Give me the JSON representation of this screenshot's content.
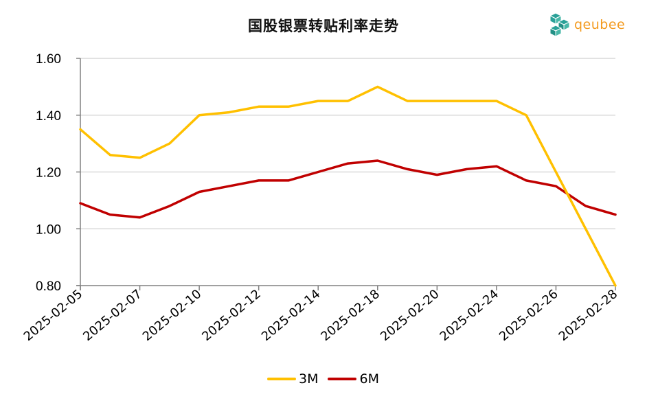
{
  "header": {
    "title": "国股银票转贴利率走势",
    "logo_text": "qeubee"
  },
  "colors": {
    "series_3m": "#FFC000",
    "series_6m": "#C00000",
    "grid": "#d9d9d9",
    "axis": "#808080",
    "logo_text": "#f39a1e",
    "logo_icon": "#2aa198"
  },
  "legend": {
    "items": [
      {
        "label": "3M",
        "color": "#FFC000"
      },
      {
        "label": "6M",
        "color": "#C00000"
      }
    ]
  },
  "chart_data": {
    "type": "line",
    "title": "国股银票转贴利率走势",
    "xlabel": "",
    "ylabel": "",
    "ylim": [
      0.8,
      1.6
    ],
    "yticks": [
      "1.60",
      "1.40",
      "1.20",
      "1.00",
      "0.80"
    ],
    "grid": true,
    "legend_position": "bottom",
    "x_tick_labels": [
      "2025-02-05",
      "2025-02-07",
      "2025-02-10",
      "2025-02-12",
      "2025-02-14",
      "2025-02-18",
      "2025-02-20",
      "2025-02-24",
      "2025-02-26",
      "2025-02-28"
    ],
    "x_point_count": 19,
    "series": [
      {
        "name": "3M",
        "color": "#FFC000",
        "values": [
          1.35,
          1.26,
          1.25,
          1.3,
          1.4,
          1.41,
          1.43,
          1.43,
          1.45,
          1.45,
          1.5,
          1.45,
          1.45,
          1.45,
          1.45,
          1.4,
          1.2,
          1.0,
          0.8
        ]
      },
      {
        "name": "6M",
        "color": "#C00000",
        "values": [
          1.09,
          1.05,
          1.04,
          1.08,
          1.13,
          1.15,
          1.17,
          1.17,
          1.2,
          1.23,
          1.24,
          1.21,
          1.19,
          1.21,
          1.22,
          1.17,
          1.15,
          1.08,
          1.05
        ]
      }
    ]
  }
}
